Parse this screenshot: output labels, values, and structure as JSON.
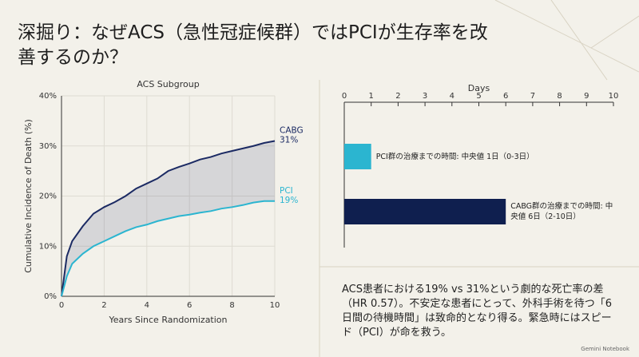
{
  "title": "深掘り：なぜACS（急性冠症候群）ではPCIが生存率を改善するのか？",
  "chart_data": [
    {
      "type": "line",
      "title": "ACS Subgroup",
      "x_label": "Years Since Randomization",
      "y_label": "Cumulative Incidence of Death (%)",
      "x": [
        0,
        0.25,
        0.5,
        1,
        1.5,
        2,
        2.5,
        3,
        3.5,
        4,
        4.5,
        5,
        5.5,
        6,
        6.5,
        7,
        7.5,
        8,
        8.5,
        9,
        9.5,
        10
      ],
      "series": [
        {
          "name": "CABG",
          "color": "#1b2a63",
          "end_label": "31%",
          "values": [
            0,
            8,
            11,
            14,
            16.5,
            17.8,
            18.8,
            20,
            21.5,
            22.5,
            23.5,
            25,
            25.8,
            26.5,
            27.3,
            27.8,
            28.5,
            29,
            29.5,
            30,
            30.6,
            31
          ]
        },
        {
          "name": "PCI",
          "color": "#2bb5d0",
          "end_label": "19%",
          "values": [
            0,
            4,
            6.5,
            8.5,
            10,
            11,
            12,
            13,
            13.8,
            14.3,
            15,
            15.5,
            16,
            16.3,
            16.7,
            17,
            17.5,
            17.8,
            18.2,
            18.7,
            19,
            19
          ]
        }
      ],
      "xlim": [
        0,
        10
      ],
      "xticks": [
        0,
        2,
        4,
        6,
        8,
        10
      ],
      "ylim": [
        0,
        40
      ],
      "yticks": [
        {
          "value": 0,
          "label": "0%"
        },
        {
          "value": 10,
          "label": "10%"
        },
        {
          "value": 20,
          "label": "20%"
        },
        {
          "value": 30,
          "label": "30%"
        },
        {
          "value": 40,
          "label": "40%"
        }
      ],
      "grid": true
    },
    {
      "type": "barh",
      "x_label": "Days",
      "categories": [
        "PCI群の治療までの時間: 中央値 1日（0-3日）",
        "CABG群の治療までの時間: 中央値 6日（2-10日）"
      ],
      "values": [
        1,
        6
      ],
      "colors": [
        "#2bb5d0",
        "#0f1f4f"
      ],
      "xlim": [
        0,
        10
      ],
      "xticks": [
        0,
        1,
        2,
        3,
        4,
        5,
        6,
        7,
        8,
        9,
        10
      ]
    }
  ],
  "summary": "ACS患者における19% vs 31%という劇的な死亡率の差（HR 0.57）。不安定な患者にとって、外科手術を待つ「6日間の待機時間」は致命的となり得る。緊急時にはスピード（PCI）が命を救う。",
  "footer": "Gemini Notebook"
}
